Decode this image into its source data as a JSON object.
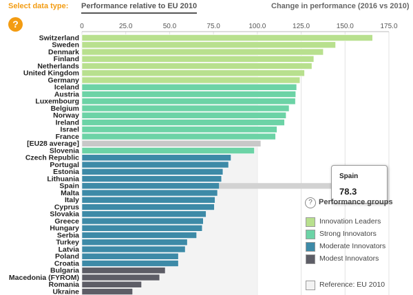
{
  "header": {
    "select_label": "Select data type:",
    "tab_active": "Performance relative to EU 2010",
    "tab_inactive": "Change in performance (2016 vs 2010)"
  },
  "help_label": "?",
  "colors": {
    "leaders": "#b8e08e",
    "strong": "#6cd3a6",
    "moderate": "#3d8aa7",
    "modest": "#5d5d66",
    "eu": "#c8c8c8",
    "reference": "#f3f3f3"
  },
  "chart_data": {
    "type": "bar",
    "orientation": "horizontal",
    "xlim": [
      0,
      175
    ],
    "xticks": [
      "0",
      "25.0",
      "50.0",
      "75.0",
      "100.0",
      "125.0",
      "150.0",
      "175.0"
    ],
    "reference": 100,
    "categories": [
      "Switzerland",
      "Sweden",
      "Denmark",
      "Finland",
      "Netherlands",
      "United Kingdom",
      "Germany",
      "Iceland",
      "Austria",
      "Luxembourg",
      "Belgium",
      "Norway",
      "Ireland",
      "Israel",
      "France",
      "[EU28 average]",
      "Slovenia",
      "Czech Republic",
      "Portugal",
      "Estonia",
      "Lithuania",
      "Spain",
      "Malta",
      "Italy",
      "Cyprus",
      "Slovakia",
      "Greece",
      "Hungary",
      "Serbia",
      "Turkey",
      "Latvia",
      "Poland",
      "Croatia",
      "Bulgaria",
      "Macedonia (FYROM)",
      "Romania",
      "Ukraine"
    ],
    "values": [
      165.7,
      144.6,
      137.6,
      132.2,
      131.1,
      126.9,
      124.3,
      122.4,
      121.9,
      121.7,
      118.1,
      116.4,
      115.5,
      111.2,
      110.4,
      102.0,
      98.3,
      85.0,
      83.6,
      80.4,
      79.6,
      78.3,
      77.3,
      75.9,
      75.5,
      70.8,
      69.2,
      68.6,
      65.4,
      60.1,
      58.9,
      55.0,
      55.0,
      47.5,
      44.3,
      34.0,
      28.9
    ],
    "groups": [
      "leaders",
      "leaders",
      "leaders",
      "leaders",
      "leaders",
      "leaders",
      "leaders",
      "strong",
      "strong",
      "strong",
      "strong",
      "strong",
      "strong",
      "strong",
      "strong",
      "eu",
      "strong",
      "moderate",
      "moderate",
      "moderate",
      "moderate",
      "moderate",
      "moderate",
      "moderate",
      "moderate",
      "moderate",
      "moderate",
      "moderate",
      "moderate",
      "moderate",
      "moderate",
      "moderate",
      "moderate",
      "modest",
      "modest",
      "modest",
      "modest"
    ]
  },
  "tooltip": {
    "name": "Spain",
    "value": "78.3"
  },
  "legend": {
    "title": "Performance groups",
    "items": [
      {
        "label": "Innovation Leaders",
        "color": "#b8e08e"
      },
      {
        "label": "Strong Innovators",
        "color": "#6cd3a6"
      },
      {
        "label": "Moderate Innovators",
        "color": "#3d8aa7"
      },
      {
        "label": "Modest Innovators",
        "color": "#5d5d66"
      }
    ],
    "reference_label": "Reference: EU 2010"
  }
}
